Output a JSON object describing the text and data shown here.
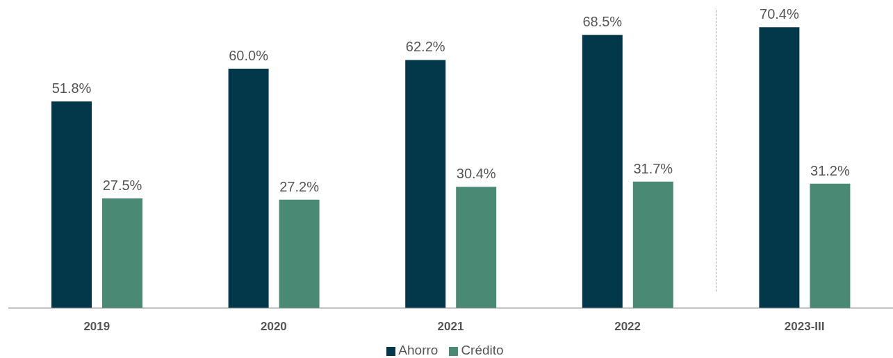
{
  "chart_data": {
    "type": "bar",
    "categories": [
      "2019",
      "2020",
      "2021",
      "2022",
      "2023-III"
    ],
    "series": [
      {
        "name": "Ahorro",
        "color": "#03384a",
        "values": [
          51.8,
          60.0,
          62.2,
          68.5,
          70.4
        ],
        "value_labels": [
          "51.8%",
          "60.0%",
          "62.2%",
          "68.5%",
          "70.4%"
        ]
      },
      {
        "name": "Crédito",
        "color": "#4a8a74",
        "values": [
          27.5,
          27.2,
          30.4,
          31.7,
          31.2
        ],
        "value_labels": [
          "27.5%",
          "27.2%",
          "30.4%",
          "31.7%",
          "31.2%"
        ]
      }
    ],
    "legend": "bottom",
    "grid": false
  }
}
